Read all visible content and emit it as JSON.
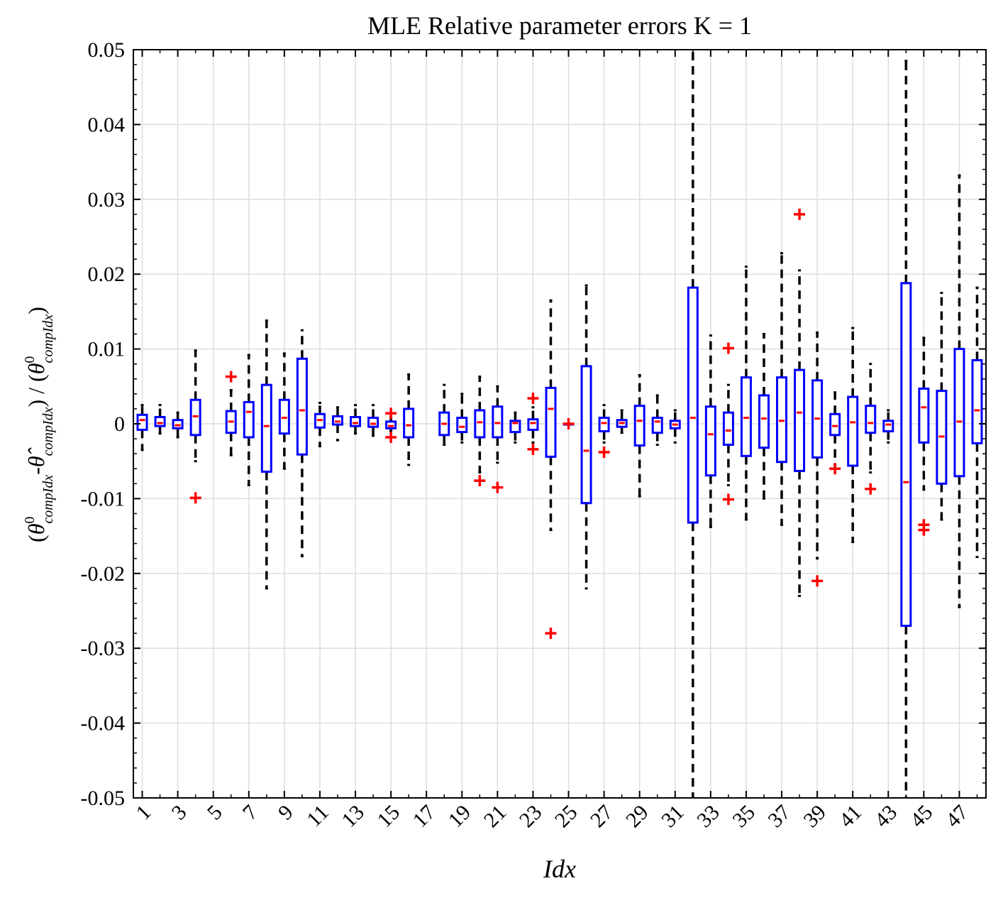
{
  "chart_data": {
    "type": "boxplot",
    "title": "MLE Relative parameter errors K = 1",
    "xlabel": "Idx",
    "ylabel": "(θ⁰_{comp_Idx} - θ̂_{comp_Idx}) / (θ⁰_{comp_Idx})",
    "ylabel_parts": {
      "open": "(",
      "theta0": "θ",
      "sup0": "0",
      "sub": "compIdx",
      "minus": "-",
      "thetahat": "θ̂",
      "close_div": ")  /  (",
      "close": ")"
    },
    "ylim": [
      -0.05,
      0.05
    ],
    "yticks": [
      "-0.05",
      "-0.04",
      "-0.03",
      "-0.02",
      "-0.01",
      "0",
      "0.01",
      "0.02",
      "0.03",
      "0.04",
      "0.05"
    ],
    "xlim": [
      0.5,
      48.5
    ],
    "xticklabels": [
      "1",
      "3",
      "5",
      "7",
      "9",
      "11",
      "13",
      "15",
      "17",
      "19",
      "21",
      "23",
      "25",
      "27",
      "29",
      "31",
      "33",
      "35",
      "37",
      "39",
      "41",
      "43",
      "45",
      "47"
    ],
    "grid": true,
    "colors": {
      "box": "#0000ff",
      "median": "#ff0000",
      "whisker": "#000000",
      "outlier": "#ff0000",
      "grid": "#dddddd"
    },
    "boxes": [
      {
        "idx": 1,
        "q1": -0.0008,
        "med": 0.0005,
        "q3": 0.0012,
        "wlo": -0.0035,
        "whi": 0.0025,
        "outliers": []
      },
      {
        "idx": 2,
        "q1": -0.0003,
        "med": 0.0001,
        "q3": 0.0009,
        "wlo": -0.0013,
        "whi": 0.0025,
        "outliers": []
      },
      {
        "idx": 3,
        "q1": -0.0006,
        "med": -0.0002,
        "q3": 0.0005,
        "wlo": -0.0018,
        "whi": 0.0015,
        "outliers": []
      },
      {
        "idx": 4,
        "q1": -0.0015,
        "med": 0.001,
        "q3": 0.0032,
        "wlo": -0.005,
        "whi": 0.0098,
        "outliers": [
          -0.0099
        ]
      },
      {
        "idx": 6,
        "q1": -0.0012,
        "med": 0.0003,
        "q3": 0.0017,
        "wlo": -0.0042,
        "whi": 0.0045,
        "outliers": [
          0.0063
        ]
      },
      {
        "idx": 7,
        "q1": -0.0018,
        "med": 0.0016,
        "q3": 0.0029,
        "wlo": -0.0082,
        "whi": 0.0092,
        "outliers": []
      },
      {
        "idx": 8,
        "q1": -0.0064,
        "med": -0.0003,
        "q3": 0.0052,
        "wlo": -0.022,
        "whi": 0.0138,
        "outliers": []
      },
      {
        "idx": 9,
        "q1": -0.0013,
        "med": 0.0008,
        "q3": 0.0032,
        "wlo": -0.006,
        "whi": 0.0094,
        "outliers": []
      },
      {
        "idx": 10,
        "q1": -0.0041,
        "med": 0.0018,
        "q3": 0.0087,
        "wlo": -0.0177,
        "whi": 0.0125,
        "outliers": []
      },
      {
        "idx": 11,
        "q1": -0.0005,
        "med": 0.0005,
        "q3": 0.0013,
        "wlo": -0.003,
        "whi": 0.0028,
        "outliers": []
      },
      {
        "idx": 12,
        "q1": -0.0001,
        "med": 0.0003,
        "q3": 0.001,
        "wlo": -0.0022,
        "whi": 0.0022,
        "outliers": []
      },
      {
        "idx": 13,
        "q1": -0.0003,
        "med": 0.0001,
        "q3": 0.0009,
        "wlo": -0.0013,
        "whi": 0.0025,
        "outliers": []
      },
      {
        "idx": 14,
        "q1": -0.0004,
        "med": 0.0,
        "q3": 0.0008,
        "wlo": -0.0016,
        "whi": 0.0025,
        "outliers": []
      },
      {
        "idx": 15,
        "q1": -0.0006,
        "med": -0.0003,
        "q3": 0.0003,
        "wlo": -0.001,
        "whi": 0.0008,
        "outliers": [
          0.0014,
          -0.0018
        ]
      },
      {
        "idx": 16,
        "q1": -0.0018,
        "med": -0.0002,
        "q3": 0.002,
        "wlo": -0.0055,
        "whi": 0.0066,
        "outliers": []
      },
      {
        "idx": 18,
        "q1": -0.0015,
        "med": 0.0,
        "q3": 0.0015,
        "wlo": -0.0028,
        "whi": 0.0052,
        "outliers": []
      },
      {
        "idx": 19,
        "q1": -0.0011,
        "med": -0.0004,
        "q3": 0.0008,
        "wlo": -0.0025,
        "whi": 0.004,
        "outliers": []
      },
      {
        "idx": 20,
        "q1": -0.0018,
        "med": 0.0002,
        "q3": 0.0018,
        "wlo": -0.0065,
        "whi": 0.0063,
        "outliers": [
          -0.0076
        ]
      },
      {
        "idx": 21,
        "q1": -0.0018,
        "med": 0.0001,
        "q3": 0.0023,
        "wlo": -0.0052,
        "whi": 0.005,
        "outliers": [
          -0.0085
        ]
      },
      {
        "idx": 22,
        "q1": -0.0011,
        "med": 0.0001,
        "q3": 0.0004,
        "wlo": -0.0025,
        "whi": 0.0015,
        "outliers": []
      },
      {
        "idx": 23,
        "q1": -0.0008,
        "med": 0.0001,
        "q3": 0.0006,
        "wlo": -0.0025,
        "whi": 0.0022,
        "outliers": [
          0.0034,
          -0.0034
        ]
      },
      {
        "idx": 24,
        "q1": -0.0044,
        "med": 0.002,
        "q3": 0.0048,
        "wlo": -0.0142,
        "whi": 0.0165,
        "outliers": [
          -0.028
        ]
      },
      {
        "idx": 25,
        "q1": 0.0,
        "med": 0.0,
        "q3": 0.0,
        "wlo": 0.0,
        "whi": 0.0,
        "outliers": [
          0.0
        ]
      },
      {
        "idx": 26,
        "q1": -0.0106,
        "med": -0.0036,
        "q3": 0.0077,
        "wlo": -0.022,
        "whi": 0.0185,
        "outliers": []
      },
      {
        "idx": 27,
        "q1": -0.001,
        "med": 0.0001,
        "q3": 0.0008,
        "wlo": -0.0025,
        "whi": 0.0025,
        "outliers": [
          -0.0038
        ]
      },
      {
        "idx": 28,
        "q1": -0.0004,
        "med": 0.0001,
        "q3": 0.0005,
        "wlo": -0.0012,
        "whi": 0.0018,
        "outliers": []
      },
      {
        "idx": 29,
        "q1": -0.0029,
        "med": 0.0004,
        "q3": 0.0024,
        "wlo": -0.0097,
        "whi": 0.0065,
        "outliers": []
      },
      {
        "idx": 30,
        "q1": -0.0012,
        "med": 0.0003,
        "q3": 0.0008,
        "wlo": -0.0028,
        "whi": 0.0038,
        "outliers": []
      },
      {
        "idx": 31,
        "q1": -0.0006,
        "med": -0.0001,
        "q3": 0.0004,
        "wlo": -0.0025,
        "whi": 0.0018,
        "outliers": []
      },
      {
        "idx": 32,
        "q1": -0.0132,
        "med": 0.0008,
        "q3": 0.0182,
        "wlo": -0.05,
        "whi": 0.05,
        "outliers": []
      },
      {
        "idx": 33,
        "q1": -0.0069,
        "med": -0.0014,
        "q3": 0.0023,
        "wlo": -0.0138,
        "whi": 0.0118,
        "outliers": []
      },
      {
        "idx": 34,
        "q1": -0.0028,
        "med": -0.0009,
        "q3": 0.0015,
        "wlo": -0.0082,
        "whi": 0.0052,
        "outliers": [
          0.0101,
          -0.0101
        ]
      },
      {
        "idx": 35,
        "q1": -0.0043,
        "med": 0.0008,
        "q3": 0.0062,
        "wlo": -0.0128,
        "whi": 0.021,
        "outliers": []
      },
      {
        "idx": 36,
        "q1": -0.0032,
        "med": 0.0007,
        "q3": 0.0038,
        "wlo": -0.01,
        "whi": 0.012,
        "outliers": []
      },
      {
        "idx": 37,
        "q1": -0.0051,
        "med": 0.0004,
        "q3": 0.0062,
        "wlo": -0.0135,
        "whi": 0.0228,
        "outliers": []
      },
      {
        "idx": 38,
        "q1": -0.0063,
        "med": 0.0015,
        "q3": 0.0072,
        "wlo": -0.023,
        "whi": 0.0205,
        "outliers": [
          0.028
        ]
      },
      {
        "idx": 39,
        "q1": -0.0045,
        "med": 0.0007,
        "q3": 0.0058,
        "wlo": -0.018,
        "whi": 0.0122,
        "outliers": [
          -0.021
        ]
      },
      {
        "idx": 40,
        "q1": -0.0015,
        "med": -0.0003,
        "q3": 0.0013,
        "wlo": -0.0055,
        "whi": 0.0042,
        "outliers": [
          -0.006
        ]
      },
      {
        "idx": 41,
        "q1": -0.0056,
        "med": 0.0002,
        "q3": 0.0036,
        "wlo": -0.0158,
        "whi": 0.0128,
        "outliers": []
      },
      {
        "idx": 42,
        "q1": -0.0012,
        "med": 0.0001,
        "q3": 0.0024,
        "wlo": -0.0065,
        "whi": 0.008,
        "outliers": [
          -0.0087
        ]
      },
      {
        "idx": 43,
        "q1": -0.001,
        "med": -0.0001,
        "q3": 0.0004,
        "wlo": -0.0025,
        "whi": 0.0018,
        "outliers": []
      },
      {
        "idx": 44,
        "q1": -0.027,
        "med": -0.0078,
        "q3": 0.0188,
        "wlo": -0.05,
        "whi": 0.0485,
        "outliers": []
      },
      {
        "idx": 45,
        "q1": -0.0025,
        "med": 0.0022,
        "q3": 0.0047,
        "wlo": -0.0088,
        "whi": 0.0115,
        "outliers": [
          -0.0135,
          -0.0142
        ]
      },
      {
        "idx": 46,
        "q1": -0.008,
        "med": -0.0017,
        "q3": 0.0044,
        "wlo": -0.0128,
        "whi": 0.0175,
        "outliers": []
      },
      {
        "idx": 47,
        "q1": -0.007,
        "med": 0.0003,
        "q3": 0.01,
        "wlo": -0.0245,
        "whi": 0.0332,
        "outliers": []
      },
      {
        "idx": 48,
        "q1": -0.0026,
        "med": 0.0018,
        "q3": 0.0085,
        "wlo": -0.0178,
        "whi": 0.0182,
        "outliers": []
      }
    ]
  }
}
